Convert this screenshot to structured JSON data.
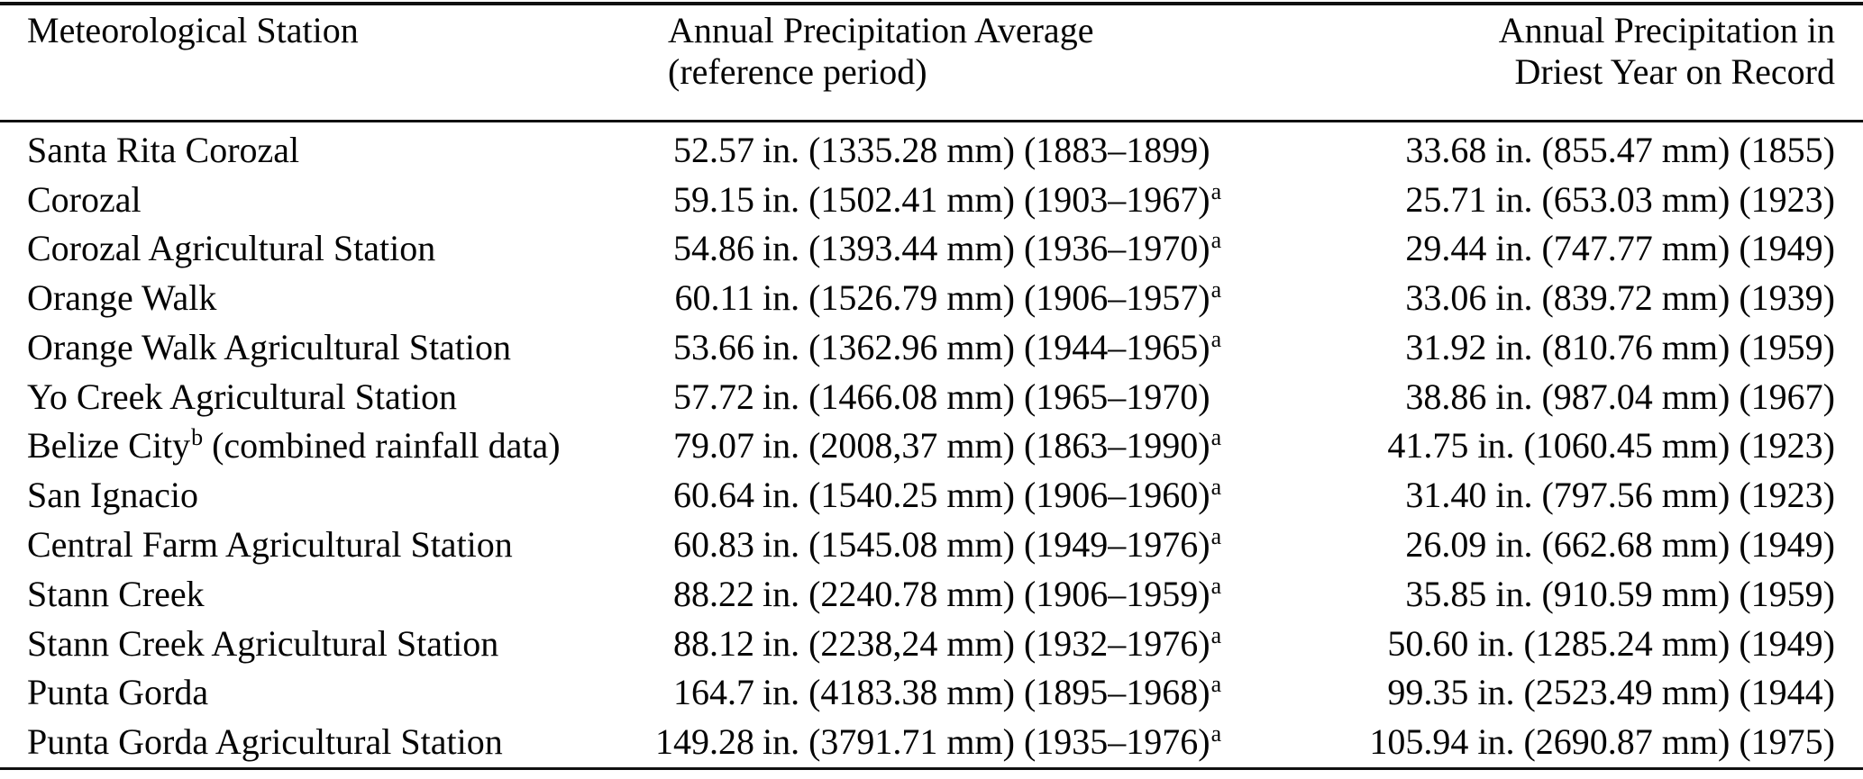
{
  "colors": {
    "background": "#ffffff",
    "text": "#050505",
    "rule": "#101010"
  },
  "table": {
    "header": {
      "station": "Meteorological Station",
      "avg_line1": "Annual Precipitation Average",
      "avg_line2": "(reference period)",
      "driest_line1": "Annual Precipitation in",
      "driest_line2": "Driest Year on Record"
    },
    "rows": [
      {
        "station": "Santa Rita Corozal",
        "station_sup": "",
        "station_suffix": "",
        "avg_in": "52.57",
        "avg_rest": "in. (1335.28 mm) (1883–1899)",
        "avg_sup": "",
        "driest": "33.68 in. (855.47 mm) (1855)"
      },
      {
        "station": "Corozal",
        "station_sup": "",
        "station_suffix": "",
        "avg_in": "59.15",
        "avg_rest": "in. (1502.41 mm) (1903–1967)",
        "avg_sup": "a",
        "driest": "25.71 in. (653.03 mm) (1923)"
      },
      {
        "station": "Corozal Agricultural Station",
        "station_sup": "",
        "station_suffix": "",
        "avg_in": "54.86",
        "avg_rest": "in. (1393.44 mm) (1936–1970)",
        "avg_sup": "a",
        "driest": "29.44 in. (747.77 mm) (1949)"
      },
      {
        "station": "Orange Walk",
        "station_sup": "",
        "station_suffix": "",
        "avg_in": "60.11",
        "avg_rest": "in. (1526.79 mm) (1906–1957)",
        "avg_sup": "a",
        "driest": "33.06 in. (839.72 mm) (1939)"
      },
      {
        "station": "Orange Walk Agricultural Station",
        "station_sup": "",
        "station_suffix": "",
        "avg_in": "53.66",
        "avg_rest": "in. (1362.96 mm) (1944–1965)",
        "avg_sup": "a",
        "driest": "31.92 in. (810.76 mm) (1959)"
      },
      {
        "station": "Yo Creek Agricultural Station",
        "station_sup": "",
        "station_suffix": "",
        "avg_in": "57.72",
        "avg_rest": "in. (1466.08 mm) (1965–1970)",
        "avg_sup": "",
        "driest": "38.86 in. (987.04 mm) (1967)"
      },
      {
        "station": "Belize City",
        "station_sup": "b",
        "station_suffix": " (combined rainfall data)",
        "avg_in": "79.07",
        "avg_rest": "in. (2008,37 mm) (1863–1990)",
        "avg_sup": "a",
        "driest": "41.75 in. (1060.45 mm) (1923)"
      },
      {
        "station": "San Ignacio",
        "station_sup": "",
        "station_suffix": "",
        "avg_in": "60.64",
        "avg_rest": "in. (1540.25 mm) (1906–1960)",
        "avg_sup": "a",
        "driest": "31.40 in. (797.56 mm) (1923)"
      },
      {
        "station": "Central Farm Agricultural Station",
        "station_sup": "",
        "station_suffix": "",
        "avg_in": "60.83",
        "avg_rest": "in. (1545.08 mm) (1949–1976)",
        "avg_sup": "a",
        "driest": "26.09 in. (662.68 mm) (1949)"
      },
      {
        "station": "Stann Creek",
        "station_sup": "",
        "station_suffix": "",
        "avg_in": "88.22",
        "avg_rest": "in. (2240.78 mm) (1906–1959)",
        "avg_sup": "a",
        "driest": "35.85 in. (910.59 mm) (1959)"
      },
      {
        "station": "Stann Creek Agricultural Station",
        "station_sup": "",
        "station_suffix": "",
        "avg_in": "88.12",
        "avg_rest": "in. (2238,24 mm) (1932–1976)",
        "avg_sup": "a",
        "driest": "50.60 in. (1285.24 mm) (1949)"
      },
      {
        "station": "Punta Gorda",
        "station_sup": "",
        "station_suffix": "",
        "avg_in": "164.7",
        "avg_rest": "in. (4183.38 mm) (1895–1968)",
        "avg_sup": "a",
        "driest": "99.35 in. (2523.49 mm) (1944)"
      },
      {
        "station": "Punta Gorda Agricultural Station",
        "station_sup": "",
        "station_suffix": "",
        "avg_in": "149.28",
        "avg_rest": "in. (3791.71 mm) (1935–1976)",
        "avg_sup": "a",
        "driest": "105.94 in. (2690.87 mm) (1975)"
      }
    ]
  }
}
